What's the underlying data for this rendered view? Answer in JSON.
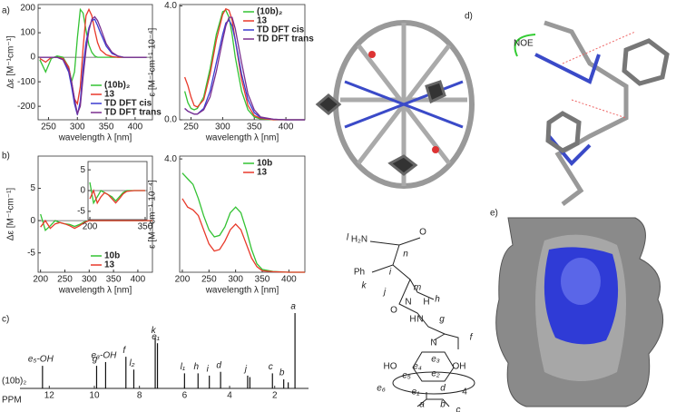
{
  "chart_data": [
    {
      "type": "line",
      "ylabel": "Δε [M⁻¹cm⁻¹]",
      "xlabel": "wavelength λ [nm]",
      "xlim": [
        232,
        430
      ],
      "xticks": [
        250,
        300,
        350,
        400
      ],
      "ylim": [
        -255,
        215
      ],
      "yticks": [
        -200,
        -100,
        0,
        100,
        200
      ],
      "legend": "lower right",
      "x": [
        235,
        245,
        255,
        265,
        275,
        285,
        290,
        295,
        300,
        305,
        310,
        315,
        320,
        325,
        330,
        335,
        340,
        350,
        360,
        370,
        380,
        400,
        420
      ],
      "series": [
        {
          "name": "(10b)₂",
          "color": "#33c233",
          "values": [
            -10,
            -60,
            -5,
            5,
            0,
            -40,
            -100,
            -60,
            80,
            195,
            180,
            110,
            50,
            20,
            5,
            0,
            0,
            0,
            0,
            0,
            0,
            0,
            0
          ]
        },
        {
          "name": "13",
          "color": "#e8392a",
          "values": [
            -5,
            -20,
            0,
            0,
            -5,
            -40,
            -100,
            -170,
            -190,
            -120,
            40,
            170,
            195,
            170,
            110,
            60,
            30,
            10,
            3,
            0,
            0,
            0,
            0
          ]
        },
        {
          "name": "TD DFT cis",
          "color": "#3a3ad0",
          "values": [
            0,
            0,
            0,
            0,
            -10,
            -60,
            -120,
            -190,
            -235,
            -180,
            -40,
            60,
            120,
            150,
            155,
            130,
            100,
            45,
            15,
            5,
            0,
            0,
            0
          ]
        },
        {
          "name": "TD DFT trans",
          "color": "#7a2f8f",
          "values": [
            0,
            0,
            0,
            0,
            -10,
            -50,
            -100,
            -170,
            -230,
            -200,
            -80,
            30,
            110,
            155,
            165,
            150,
            120,
            55,
            20,
            5,
            0,
            0,
            0
          ]
        }
      ]
    },
    {
      "type": "line",
      "ylabel": "ε [M⁻¹cm⁻¹·10⁻⁴]",
      "xlabel": "wavelength λ [nm]",
      "xlim": [
        232,
        430
      ],
      "xticks": [
        250,
        300,
        350,
        400
      ],
      "ylim": [
        0,
        4.05
      ],
      "yticks": [
        {
          "value": 0,
          "label": "0.0"
        },
        {
          "value": 4,
          "label": "4.0"
        }
      ],
      "legend": "upper right",
      "x": [
        240,
        245,
        250,
        255,
        260,
        270,
        280,
        290,
        300,
        305,
        310,
        315,
        320,
        330,
        340,
        350,
        360,
        380,
        400,
        430
      ],
      "series": [
        {
          "name": "(10b)₂",
          "color": "#33c233",
          "values": [
            1.0,
            0.6,
            0.4,
            0.35,
            0.4,
            0.8,
            1.8,
            3.0,
            3.8,
            3.85,
            3.6,
            3.0,
            2.2,
            1.0,
            0.35,
            0.1,
            0.03,
            0,
            0,
            0
          ]
        },
        {
          "name": "13",
          "color": "#e8392a",
          "values": [
            1.5,
            1.2,
            0.8,
            0.5,
            0.45,
            0.7,
            1.6,
            2.8,
            3.7,
            3.9,
            3.85,
            3.5,
            2.8,
            1.4,
            0.5,
            0.15,
            0.05,
            0,
            0,
            0
          ]
        },
        {
          "name": "TD DFT cis",
          "color": "#3a3ad0",
          "values": [
            0.4,
            0.3,
            0.25,
            0.2,
            0.2,
            0.4,
            1.0,
            2.0,
            3.0,
            3.4,
            3.5,
            3.3,
            2.8,
            1.6,
            0.7,
            0.25,
            0.08,
            0.02,
            0,
            0
          ]
        },
        {
          "name": "TD DFT trans",
          "color": "#7a2f8f",
          "values": [
            0.4,
            0.3,
            0.25,
            0.2,
            0.2,
            0.35,
            0.8,
            1.7,
            2.8,
            3.3,
            3.6,
            3.6,
            3.2,
            2.0,
            0.9,
            0.35,
            0.1,
            0.02,
            0,
            0
          ]
        }
      ]
    },
    {
      "type": "line",
      "ylabel": "Δε [M⁻¹cm⁻¹]",
      "xlabel": "wavelength λ [nm]",
      "xlim": [
        195,
        430
      ],
      "xticks": [
        200,
        250,
        300,
        350,
        400
      ],
      "ylim": [
        -8,
        10
      ],
      "yticks": [
        -5,
        0,
        5
      ],
      "legend": "lower right",
      "x": [
        200,
        210,
        220,
        230,
        240,
        250,
        260,
        270,
        280,
        290,
        300,
        320,
        350,
        400,
        430
      ],
      "series": [
        {
          "name": "10b",
          "color": "#33c233",
          "values": [
            1,
            -1.5,
            -0.8,
            0,
            -0.3,
            -0.5,
            -0.6,
            -0.9,
            -0.6,
            -0.2,
            0,
            0,
            0,
            0,
            0
          ]
        },
        {
          "name": "13",
          "color": "#e8392a",
          "values": [
            -1,
            0,
            -1.2,
            -0.5,
            -0.3,
            -0.5,
            -0.8,
            -1.2,
            -0.8,
            -0.3,
            0,
            0,
            0,
            0,
            0
          ]
        }
      ]
    },
    {
      "type": "line",
      "xlim": [
        195,
        355
      ],
      "xticks": [
        200,
        350
      ],
      "ylim": [
        -7,
        7
      ],
      "yticks": [
        -5,
        0,
        5
      ],
      "x": [
        200,
        210,
        220,
        230,
        240,
        250,
        260,
        270,
        280,
        290,
        300,
        320,
        350
      ],
      "series": [
        {
          "color": "#33c233",
          "values": [
            2,
            -3,
            -1.5,
            0,
            -0.5,
            -1,
            -1.5,
            -2.5,
            -1.5,
            -0.5,
            0,
            0,
            0
          ]
        },
        {
          "color": "#e8392a",
          "values": [
            -2,
            0,
            -3,
            -1.5,
            -0.5,
            -1,
            -2,
            -3,
            -2,
            -0.8,
            -0.2,
            0,
            0
          ]
        }
      ]
    },
    {
      "type": "line",
      "ylabel": "ε [M⁻¹cm⁻¹·10⁻⁴]",
      "xlabel": "wavelength λ [nm]",
      "xlim": [
        195,
        430
      ],
      "xticks": [
        200,
        250,
        300,
        350,
        400
      ],
      "ylim": [
        0,
        4.1
      ],
      "yticks": [
        {
          "value": 4,
          "label": "4.0"
        }
      ],
      "legend": "upper right",
      "x": [
        200,
        210,
        220,
        230,
        240,
        250,
        260,
        270,
        280,
        290,
        300,
        310,
        320,
        330,
        340,
        350,
        370,
        400,
        430
      ],
      "series": [
        {
          "name": "10b",
          "color": "#33c233",
          "values": [
            3.5,
            3.3,
            3.1,
            2.6,
            2.0,
            1.5,
            1.25,
            1.3,
            1.6,
            2.1,
            2.3,
            2.1,
            1.5,
            0.8,
            0.3,
            0.1,
            0.03,
            0,
            0
          ]
        },
        {
          "name": "13",
          "color": "#e8392a",
          "values": [
            2.6,
            2.3,
            2.2,
            2.0,
            1.5,
            1.0,
            0.75,
            0.8,
            1.1,
            1.5,
            1.7,
            1.5,
            1.0,
            0.5,
            0.2,
            0.05,
            0.02,
            0,
            0
          ]
        }
      ]
    },
    {
      "type": "spectrum",
      "xlabel": "PPM",
      "sample": "(10b)₂",
      "xlim": [
        13.3,
        0.5
      ],
      "xticks": [
        12,
        10,
        8,
        6,
        4,
        2
      ],
      "x": [
        12.3,
        9.9,
        9.5,
        8.6,
        8.25,
        7.3,
        7.2,
        6.0,
        5.4,
        4.9,
        4.4,
        3.2,
        3.1,
        2.1,
        1.6,
        1.4,
        1.1
      ],
      "values": [
        0.3,
        0.3,
        0.35,
        0.42,
        0.25,
        0.68,
        0.6,
        0.2,
        0.2,
        0.17,
        0.22,
        0.17,
        0.15,
        0.2,
        0.12,
        0.08,
        1.0
      ],
      "value_labels": [
        "e₅-OH",
        "g",
        "e₃-OH",
        "f",
        "l₂",
        "k",
        "e₁",
        "l₁",
        "h",
        "i",
        "d",
        "j",
        null,
        "c",
        "b",
        null,
        "a"
      ]
    }
  ],
  "panel_labels": [
    "a)",
    "b)",
    "c)",
    "d)",
    "e)"
  ],
  "noe_label": "NOE",
  "structure_labels": [
    "l",
    "H₂N",
    "O",
    "n",
    "Ph",
    "k",
    "i",
    "j",
    "m",
    "N",
    "H",
    "h",
    "O",
    "N",
    "H",
    "g",
    "N",
    "f",
    "HO",
    "OH",
    "e₅",
    "e₄",
    "e₃",
    "e₂",
    "e₆",
    "e₁",
    "d",
    "4",
    "a",
    "b",
    "c"
  ]
}
